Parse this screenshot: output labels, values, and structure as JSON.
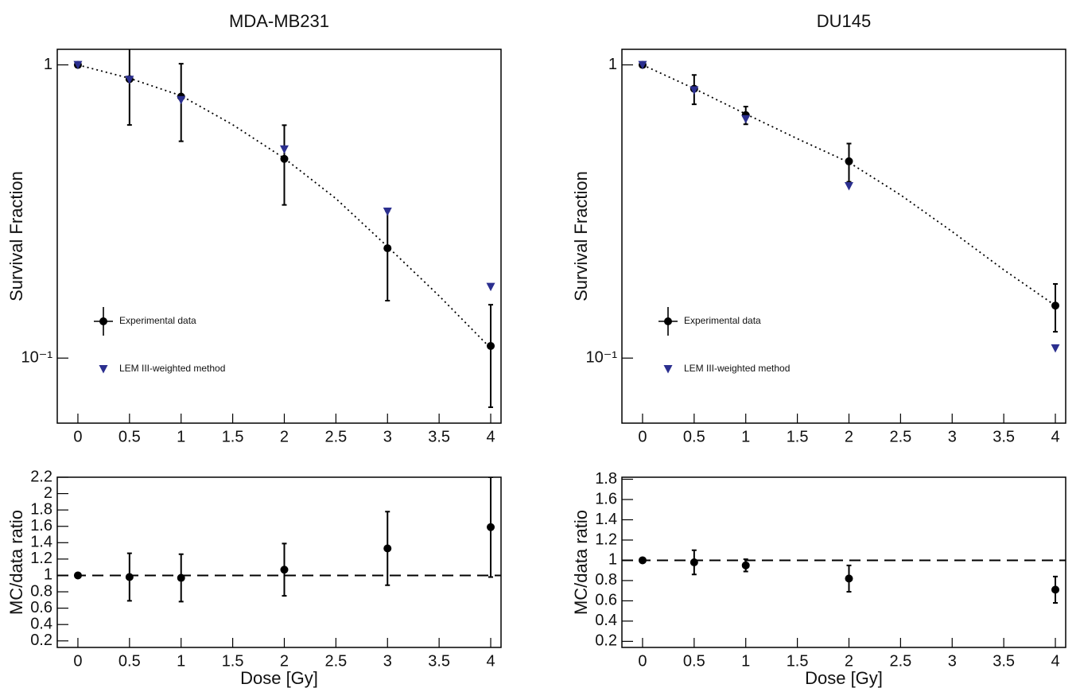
{
  "chart_data": [
    {
      "type": "scatter",
      "title": "MDA-MB231",
      "ylabel": "Survival Fraction",
      "ylog": true,
      "legend": "lower left",
      "xlim": [
        -0.2,
        4.1
      ],
      "xticks": [
        0,
        0.5,
        1,
        1.5,
        2,
        2.5,
        3,
        3.5,
        4
      ],
      "ylim": [
        0.06,
        1.13
      ],
      "yticks": [
        {
          "value": 0.1,
          "label": "10⁻¹"
        },
        1
      ],
      "fit": {
        "x": [
          0,
          0.5,
          1,
          1.5,
          2,
          2.5,
          3,
          3.5,
          4
        ],
        "values": [
          1.0,
          0.9,
          0.785,
          0.625,
          0.48,
          0.35,
          0.24,
          0.163,
          0.108
        ],
        "color": "#000000"
      },
      "series": [
        {
          "name": "Experimental data",
          "color": "#000000",
          "marker": "circle",
          "x": [
            0,
            0.5,
            1,
            2,
            3,
            4
          ],
          "values": [
            1.0,
            0.894,
            0.779,
            0.478,
            0.237,
            0.11
          ],
          "errors": [
            0,
            0.27,
            0.23,
            0.145,
            0.08,
            0.042
          ]
        },
        {
          "name": "LEM III-weighted method",
          "color": "#2b2f8f",
          "marker": "triangle-down",
          "x": [
            0,
            0.5,
            1,
            2,
            3,
            4
          ],
          "values": [
            1.0,
            0.89,
            0.759,
            0.515,
            0.316,
            0.175
          ]
        }
      ]
    },
    {
      "type": "scatter",
      "title": "DU145",
      "ylabel": "Survival Fraction",
      "ylog": true,
      "legend": "lower left",
      "xlim": [
        -0.2,
        4.1
      ],
      "xticks": [
        0,
        0.5,
        1,
        1.5,
        2,
        2.5,
        3,
        3.5,
        4
      ],
      "ylim": [
        0.06,
        1.13
      ],
      "yticks": [
        {
          "value": 0.1,
          "label": "10⁻¹"
        },
        1
      ],
      "fit": {
        "x": [
          0,
          0.5,
          1,
          1.5,
          2,
          2.5,
          3,
          3.5,
          4
        ],
        "values": [
          1.0,
          0.83,
          0.68,
          0.56,
          0.465,
          0.36,
          0.27,
          0.2,
          0.151
        ],
        "color": "#000000"
      },
      "series": [
        {
          "name": "Experimental data",
          "color": "#000000",
          "marker": "circle",
          "x": [
            0,
            0.5,
            1,
            2,
            4
          ],
          "values": [
            1.0,
            0.829,
            0.674,
            0.469,
            0.151
          ],
          "errors": [
            0,
            0.095,
            0.047,
            0.07,
            0.028
          ]
        },
        {
          "name": "LEM III-weighted method",
          "color": "#2b2f8f",
          "marker": "triangle-down",
          "x": [
            0,
            0.5,
            1,
            2,
            4
          ],
          "values": [
            1.0,
            0.819,
            0.653,
            0.386,
            0.108
          ]
        }
      ]
    },
    {
      "type": "scatter",
      "xlabel": "Dose [Gy]",
      "ylabel": "MC/data ratio",
      "hline": 1,
      "xlim": [
        -0.2,
        4.1
      ],
      "xticks": [
        0,
        0.5,
        1,
        1.5,
        2,
        2.5,
        3,
        3.5,
        4
      ],
      "ylim": [
        0.12,
        2.2
      ],
      "yticks": [
        0.2,
        0.4,
        0.6,
        0.8,
        1,
        1.2,
        1.4,
        1.6,
        1.8,
        2,
        2.2
      ],
      "series": [
        {
          "color": "#000000",
          "marker": "circle",
          "x": [
            0,
            0.5,
            1,
            2,
            3,
            4
          ],
          "values": [
            1.0,
            0.98,
            0.97,
            1.07,
            1.33,
            1.59
          ],
          "errors": [
            0,
            0.29,
            0.29,
            0.32,
            0.45,
            0.61
          ]
        }
      ]
    },
    {
      "type": "scatter",
      "xlabel": "Dose [Gy]",
      "ylabel": "MC/data ratio",
      "hline": 1,
      "xlim": [
        -0.2,
        4.1
      ],
      "xticks": [
        0,
        0.5,
        1,
        1.5,
        2,
        2.5,
        3,
        3.5,
        4
      ],
      "ylim": [
        0.14,
        1.82
      ],
      "yticks": [
        0.2,
        0.4,
        0.6,
        0.8,
        1,
        1.2,
        1.4,
        1.6,
        1.8
      ],
      "series": [
        {
          "color": "#000000",
          "marker": "circle",
          "x": [
            0,
            0.5,
            1,
            2,
            4
          ],
          "values": [
            1.0,
            0.98,
            0.95,
            0.82,
            0.71
          ],
          "errors": [
            0,
            0.12,
            0.06,
            0.13,
            0.13
          ]
        }
      ]
    }
  ]
}
